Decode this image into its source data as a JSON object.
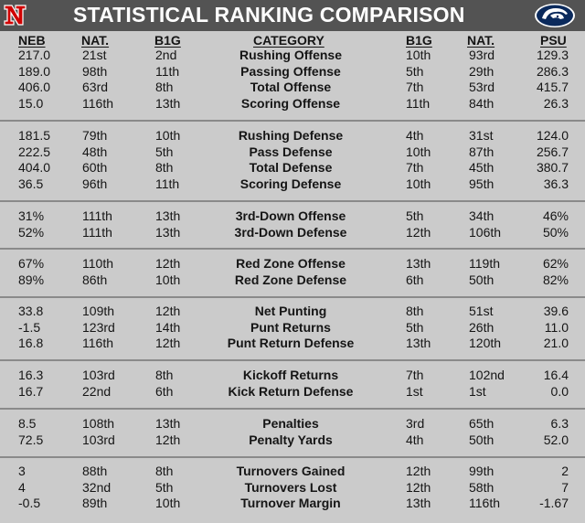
{
  "title": "STATISTICAL RANKING COMPARISON",
  "logos": {
    "left": "N",
    "right": "psu-nittany-lion"
  },
  "headers": {
    "neb": "NEB",
    "neb_nat": "NAT.",
    "neb_b1g": "B1G",
    "category": "CATEGORY",
    "psu_b1g": "B1G",
    "psu_nat": "NAT.",
    "psu": "PSU"
  },
  "groups": [
    {
      "rows": [
        {
          "neb": "217.0",
          "neb_nat": "21st",
          "neb_b1g": "2nd",
          "category": "Rushing Offense",
          "psu_b1g": "10th",
          "psu_nat": "93rd",
          "psu": "129.3"
        },
        {
          "neb": "189.0",
          "neb_nat": "98th",
          "neb_b1g": "11th",
          "category": "Passing Offense",
          "psu_b1g": "5th",
          "psu_nat": "29th",
          "psu": "286.3"
        },
        {
          "neb": "406.0",
          "neb_nat": "63rd",
          "neb_b1g": "8th",
          "category": "Total Offense",
          "psu_b1g": "7th",
          "psu_nat": "53rd",
          "psu": "415.7"
        },
        {
          "neb": "15.0",
          "neb_nat": "116th",
          "neb_b1g": "13th",
          "category": "Scoring Offense",
          "psu_b1g": "11th",
          "psu_nat": "84th",
          "psu": "26.3"
        }
      ]
    },
    {
      "rows": [
        {
          "neb": "181.5",
          "neb_nat": "79th",
          "neb_b1g": "10th",
          "category": "Rushing Defense",
          "psu_b1g": "4th",
          "psu_nat": "31st",
          "psu": "124.0"
        },
        {
          "neb": "222.5",
          "neb_nat": "48th",
          "neb_b1g": "5th",
          "category": "Pass Defense",
          "psu_b1g": "10th",
          "psu_nat": "87th",
          "psu": "256.7"
        },
        {
          "neb": "404.0",
          "neb_nat": "60th",
          "neb_b1g": "8th",
          "category": "Total Defense",
          "psu_b1g": "7th",
          "psu_nat": "45th",
          "psu": "380.7"
        },
        {
          "neb": "36.5",
          "neb_nat": "96th",
          "neb_b1g": "11th",
          "category": "Scoring Defense",
          "psu_b1g": "10th",
          "psu_nat": "95th",
          "psu": "36.3"
        }
      ]
    },
    {
      "rows": [
        {
          "neb": "31%",
          "neb_nat": "111th",
          "neb_b1g": "13th",
          "category": "3rd-Down Offense",
          "psu_b1g": "5th",
          "psu_nat": "34th",
          "psu": "46%"
        },
        {
          "neb": "52%",
          "neb_nat": "111th",
          "neb_b1g": "13th",
          "category": "3rd-Down Defense",
          "psu_b1g": "12th",
          "psu_nat": "106th",
          "psu": "50%"
        }
      ]
    },
    {
      "rows": [
        {
          "neb": "67%",
          "neb_nat": "110th",
          "neb_b1g": "12th",
          "category": "Red Zone Offense",
          "psu_b1g": "13th",
          "psu_nat": "119th",
          "psu": "62%"
        },
        {
          "neb": "89%",
          "neb_nat": "86th",
          "neb_b1g": "10th",
          "category": "Red Zone Defense",
          "psu_b1g": "6th",
          "psu_nat": "50th",
          "psu": "82%"
        }
      ]
    },
    {
      "rows": [
        {
          "neb": "33.8",
          "neb_nat": "109th",
          "neb_b1g": "12th",
          "category": "Net Punting",
          "psu_b1g": "8th",
          "psu_nat": "51st",
          "psu": "39.6"
        },
        {
          "neb": "-1.5",
          "neb_nat": "123rd",
          "neb_b1g": "14th",
          "category": "Punt Returns",
          "psu_b1g": "5th",
          "psu_nat": "26th",
          "psu": "11.0"
        },
        {
          "neb": "16.8",
          "neb_nat": "116th",
          "neb_b1g": "12th",
          "category": "Punt Return Defense",
          "psu_b1g": "13th",
          "psu_nat": "120th",
          "psu": "21.0"
        }
      ]
    },
    {
      "rows": [
        {
          "neb": "16.3",
          "neb_nat": "103rd",
          "neb_b1g": "8th",
          "category": "Kickoff Returns",
          "psu_b1g": "7th",
          "psu_nat": "102nd",
          "psu": "16.4"
        },
        {
          "neb": "16.7",
          "neb_nat": "22nd",
          "neb_b1g": "6th",
          "category": "Kick Return Defense",
          "psu_b1g": "1st",
          "psu_nat": "1st",
          "psu": "0.0"
        }
      ]
    },
    {
      "rows": [
        {
          "neb": "8.5",
          "neb_nat": "108th",
          "neb_b1g": "13th",
          "category": "Penalties",
          "psu_b1g": "3rd",
          "psu_nat": "65th",
          "psu": "6.3"
        },
        {
          "neb": "72.5",
          "neb_nat": "103rd",
          "neb_b1g": "12th",
          "category": "Penalty Yards",
          "psu_b1g": "4th",
          "psu_nat": "50th",
          "psu": "52.0"
        }
      ]
    },
    {
      "rows": [
        {
          "neb": "3",
          "neb_nat": "88th",
          "neb_b1g": "8th",
          "category": "Turnovers Gained",
          "psu_b1g": "12th",
          "psu_nat": "99th",
          "psu": "2"
        },
        {
          "neb": "4",
          "neb_nat": "32nd",
          "neb_b1g": "5th",
          "category": "Turnovers Lost",
          "psu_b1g": "12th",
          "psu_nat": "58th",
          "psu": "7"
        },
        {
          "neb": "-0.5",
          "neb_nat": "89th",
          "neb_b1g": "10th",
          "category": "Turnover Margin",
          "psu_b1g": "13th",
          "psu_nat": "116th",
          "psu": "-1.67"
        }
      ]
    }
  ],
  "colors": {
    "banner": "#535353",
    "background": "#cbcbcb",
    "divider": "#8a8a8a",
    "nebraska_red": "#d00000",
    "psu_navy": "#0b2a5c"
  }
}
